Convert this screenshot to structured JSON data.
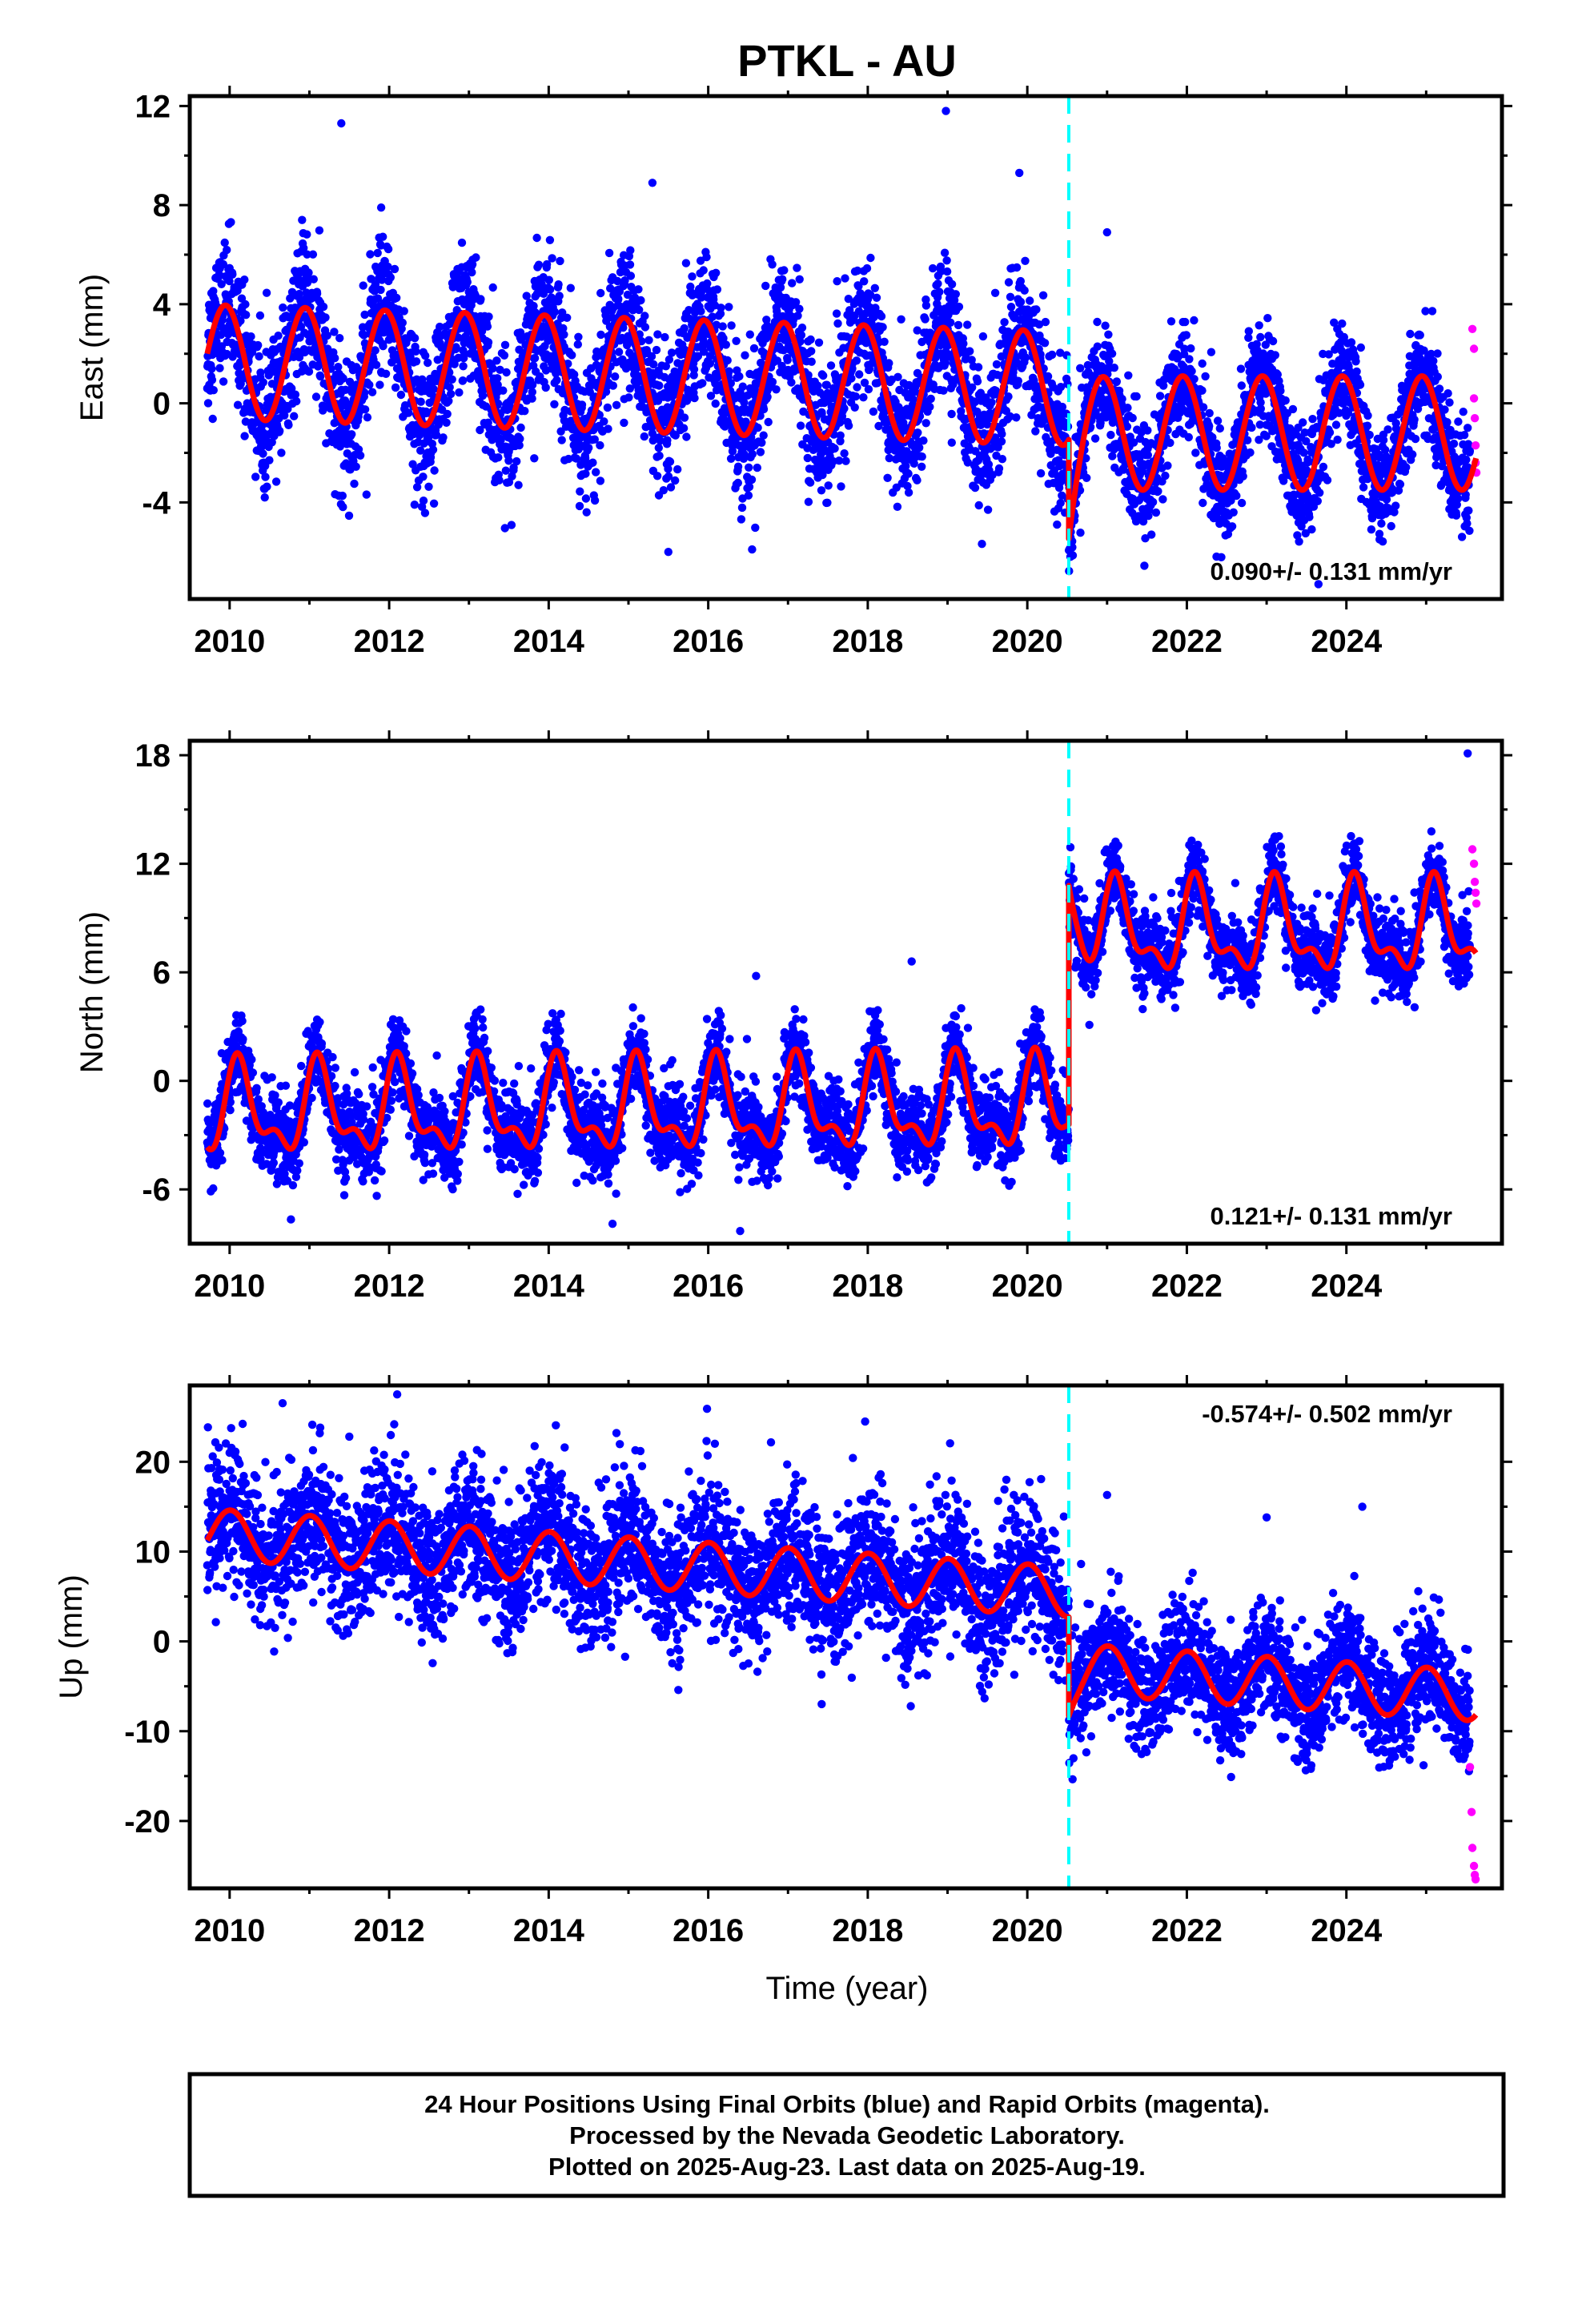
{
  "title": "PTKL - AU",
  "xlabel": "Time (year)",
  "footer": {
    "lines": [
      "24 Hour Positions Using Final Orbits (blue) and Rapid Orbits (magenta).",
      "Processed by the Nevada Geodetic Laboratory.",
      "Plotted on 2025-Aug-23. Last data on 2025-Aug-19."
    ]
  },
  "colors": {
    "final_orbits": "#0000ff",
    "rapid_orbits": "#ff00ff",
    "model": "#ff0000",
    "event_line": "#00ffff",
    "frame": "#000000"
  },
  "chart_data": [
    {
      "type": "scatter",
      "ylabel": "East (mm)",
      "rate": "0.090+/- 0.131 mm/yr",
      "rate_position": "bottom-right",
      "xlim": [
        2009.5,
        2025.95
      ],
      "ylim": [
        -7.9,
        12.4
      ],
      "x_ticks": [
        2010,
        2012,
        2014,
        2016,
        2018,
        2020,
        2022,
        2024
      ],
      "x_tick_labels": [
        "2010",
        "2012",
        "2014",
        "2016",
        "2018",
        "2020",
        "2022",
        "2024"
      ],
      "y_ticks": [
        -4,
        0,
        4,
        8,
        12
      ],
      "y_tick_labels": [
        "-4",
        "0",
        "4",
        "8",
        "12"
      ],
      "event": 2020.52,
      "x_start": 2009.72,
      "x_end": 2025.63,
      "rapid_start": 2025.55,
      "model": {
        "pre": {
          "offset": 0.6,
          "trend": -0.1,
          "annual_amp": 2.3,
          "annual_phase": 1.9,
          "semi_amp": 0.0,
          "semi_phase": 0.0
        },
        "post": {
          "offset": -1.2,
          "trend": 0.0,
          "annual_amp": 2.3,
          "annual_phase": 1.9,
          "semi_amp": 0.0,
          "semi_phase": 0.0
        },
        "post_decay": {
          "amp": -2.2,
          "tau": 0.1
        }
      },
      "scatter_noise": 1.3,
      "pre_noise": 1.35,
      "post_noise": 1.1,
      "outliers": [
        [
          2011.4,
          11.3
        ],
        [
          2011.9,
          7.9
        ],
        [
          2015.3,
          8.9
        ],
        [
          2018.98,
          11.8
        ],
        [
          2019.9,
          9.3
        ],
        [
          2015.5,
          -6.0
        ],
        [
          2016.55,
          -5.9
        ],
        [
          2021.0,
          6.9
        ],
        [
          2023.65,
          -7.3
        ]
      ],
      "rapid_points": [
        [
          2025.58,
          3.0
        ],
        [
          2025.6,
          2.2
        ],
        [
          2025.6,
          0.2
        ],
        [
          2025.61,
          -0.6
        ],
        [
          2025.62,
          -1.7
        ],
        [
          2025.62,
          -2.4
        ],
        [
          2025.63,
          -2.8
        ]
      ]
    },
    {
      "type": "scatter",
      "ylabel": "North (mm)",
      "rate": "0.121+/- 0.131 mm/yr",
      "rate_position": "bottom-right",
      "xlim": [
        2009.5,
        2025.95
      ],
      "ylim": [
        -9.0,
        18.8
      ],
      "x_ticks": [
        2010,
        2012,
        2014,
        2016,
        2018,
        2020,
        2022,
        2024
      ],
      "x_tick_labels": [
        "2010",
        "2012",
        "2014",
        "2016",
        "2018",
        "2020",
        "2022",
        "2024"
      ],
      "y_ticks": [
        -6,
        0,
        6,
        12,
        18
      ],
      "y_tick_labels": [
        "-6",
        "0",
        "6",
        "12",
        "18"
      ],
      "event": 2020.52,
      "x_start": 2009.72,
      "x_end": 2025.63,
      "rapid_start": 2025.55,
      "model": {
        "pre": {
          "offset": -1.4,
          "trend": 0.03,
          "annual_amp": 2.2,
          "annual_phase": 0.8,
          "semi_amp": 1.1,
          "semi_phase": 0.5
        },
        "post": {
          "offset": 8.3,
          "trend": 0.0,
          "annual_amp": 2.2,
          "annual_phase": 0.8,
          "semi_amp": 1.1,
          "semi_phase": 0.5
        },
        "post_decay": {
          "amp": 3.5,
          "tau": 0.12
        }
      },
      "scatter_noise": 1.1,
      "pre_noise": 1.15,
      "post_noise": 1.05,
      "outliers": [
        [
          2016.6,
          5.8
        ],
        [
          2018.55,
          6.6
        ],
        [
          2016.4,
          -8.3
        ],
        [
          2014.8,
          -7.9
        ],
        [
          2025.52,
          18.1
        ]
      ],
      "rapid_points": [
        [
          2025.58,
          12.8
        ],
        [
          2025.6,
          12.0
        ],
        [
          2025.61,
          11.0
        ],
        [
          2025.62,
          10.4
        ],
        [
          2025.63,
          9.8
        ]
      ]
    },
    {
      "type": "scatter",
      "ylabel": "Up (mm)",
      "rate": "-0.574+/- 0.502 mm/yr",
      "rate_position": "top-right",
      "xlim": [
        2009.5,
        2025.95
      ],
      "ylim": [
        -27.5,
        28.5
      ],
      "x_ticks": [
        2010,
        2012,
        2014,
        2016,
        2018,
        2020,
        2022,
        2024
      ],
      "x_tick_labels": [
        "2010",
        "2012",
        "2014",
        "2016",
        "2018",
        "2020",
        "2022",
        "2024"
      ],
      "y_ticks": [
        -20,
        -10,
        0,
        10,
        20
      ],
      "y_tick_labels": [
        "-20",
        "-10",
        "0",
        "10",
        "20"
      ],
      "event": 2020.52,
      "x_start": 2009.72,
      "x_end": 2025.63,
      "rapid_start": 2025.55,
      "model": {
        "pre": {
          "offset": 5.5,
          "trend": -0.6,
          "annual_amp": 2.8,
          "annual_phase": 1.5,
          "semi_amp": 0.0,
          "semi_phase": 0.0
        },
        "post": {
          "offset": -3.0,
          "trend": -0.6,
          "annual_amp": 2.8,
          "annual_phase": 1.5,
          "semi_amp": 0.0,
          "semi_phase": 0.0
        },
        "post_decay": {
          "amp": -2.5,
          "tau": 0.1
        }
      },
      "scatter_noise": 3.6,
      "pre_noise": 3.9,
      "post_noise": 3.2,
      "outliers": [
        [
          2012.1,
          27.5
        ],
        [
          2014.85,
          23.2
        ],
        [
          2011.5,
          22.8
        ],
        [
          2013.1,
          21.3
        ],
        [
          2014.2,
          21.6
        ],
        [
          2010.0,
          21.0
        ],
        [
          2021.0,
          16.3
        ],
        [
          2023.0,
          13.8
        ],
        [
          2024.2,
          15.0
        ]
      ],
      "rapid_points": [
        [
          2025.55,
          -14.0
        ],
        [
          2025.57,
          -19.0
        ],
        [
          2025.58,
          -23.0
        ],
        [
          2025.6,
          -25.0
        ],
        [
          2025.61,
          -26.0
        ],
        [
          2025.62,
          -26.5
        ]
      ]
    }
  ]
}
